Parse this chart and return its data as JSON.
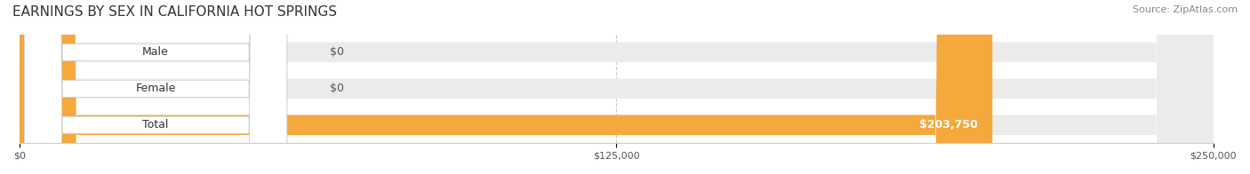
{
  "title": "EARNINGS BY SEX IN CALIFORNIA HOT SPRINGS",
  "source": "Source: ZipAtlas.com",
  "categories": [
    "Male",
    "Female",
    "Total"
  ],
  "values": [
    0,
    0,
    203750
  ],
  "xlim": [
    0,
    250000
  ],
  "xticks": [
    0,
    125000,
    250000
  ],
  "xtick_labels": [
    "$0",
    "$125,000",
    "$250,000"
  ],
  "bar_colors": [
    "#a8c8e8",
    "#f4a0b8",
    "#f5a83c"
  ],
  "bar_bg_color": "#ebebeb",
  "label_colors": [
    "#a8c8e8",
    "#f4a0b8",
    "#f5a83c"
  ],
  "value_labels": [
    "$0",
    "$0",
    "$203,750"
  ],
  "background_color": "#ffffff",
  "title_fontsize": 11,
  "source_fontsize": 8,
  "label_fontsize": 9,
  "value_fontsize": 9,
  "bar_height": 0.55
}
